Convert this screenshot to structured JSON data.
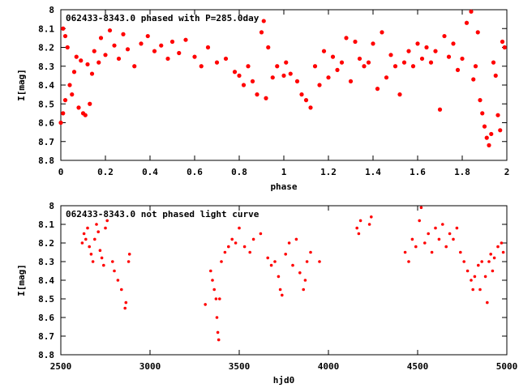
{
  "chart_data": [
    {
      "type": "scatter",
      "title": "062433-8343.0 phased with P=285.0day",
      "xlabel": "phase",
      "ylabel": "I[mag]",
      "xlim": [
        0,
        2
      ],
      "ylim": [
        8.8,
        8.0
      ],
      "y_inverted": true,
      "xticks": [
        "0",
        "0.2",
        "0.4",
        "0.6",
        "0.8",
        "1",
        "1.2",
        "1.4",
        "1.6",
        "1.8",
        "2"
      ],
      "xtick_values": [
        0,
        0.2,
        0.4,
        0.6,
        0.8,
        1.0,
        1.2,
        1.4,
        1.6,
        1.8,
        2.0
      ],
      "yticks": [
        "8",
        "8.1",
        "8.2",
        "8.3",
        "8.4",
        "8.5",
        "8.6",
        "8.7",
        "8.8"
      ],
      "ytick_values": [
        8.0,
        8.1,
        8.2,
        8.3,
        8.4,
        8.5,
        8.6,
        8.7,
        8.8
      ],
      "grid": false,
      "marker_color": "#ff0000",
      "series": [
        {
          "points": [
            [
              0.0,
              8.6
            ],
            [
              0.01,
              8.55
            ],
            [
              0.02,
              8.48
            ],
            [
              0.01,
              8.1
            ],
            [
              0.02,
              8.14
            ],
            [
              0.03,
              8.2
            ],
            [
              0.04,
              8.4
            ],
            [
              0.05,
              8.45
            ],
            [
              0.06,
              8.33
            ],
            [
              0.07,
              8.25
            ],
            [
              0.08,
              8.52
            ],
            [
              0.09,
              8.27
            ],
            [
              0.1,
              8.55
            ],
            [
              0.11,
              8.56
            ],
            [
              0.12,
              8.29
            ],
            [
              0.13,
              8.5
            ],
            [
              0.14,
              8.34
            ],
            [
              0.15,
              8.22
            ],
            [
              0.17,
              8.28
            ],
            [
              0.18,
              8.15
            ],
            [
              0.2,
              8.24
            ],
            [
              0.22,
              8.11
            ],
            [
              0.24,
              8.19
            ],
            [
              0.26,
              8.26
            ],
            [
              0.28,
              8.13
            ],
            [
              0.3,
              8.21
            ],
            [
              0.33,
              8.3
            ],
            [
              0.36,
              8.18
            ],
            [
              0.39,
              8.14
            ],
            [
              0.42,
              8.22
            ],
            [
              0.45,
              8.19
            ],
            [
              0.48,
              8.26
            ],
            [
              0.5,
              8.17
            ],
            [
              0.53,
              8.23
            ],
            [
              0.56,
              8.16
            ],
            [
              0.6,
              8.25
            ],
            [
              0.63,
              8.3
            ],
            [
              0.66,
              8.2
            ],
            [
              0.7,
              8.28
            ],
            [
              0.74,
              8.26
            ],
            [
              0.78,
              8.33
            ],
            [
              0.8,
              8.35
            ],
            [
              0.82,
              8.4
            ],
            [
              0.84,
              8.3
            ],
            [
              0.86,
              8.38
            ],
            [
              0.88,
              8.45
            ],
            [
              0.9,
              8.12
            ],
            [
              0.91,
              8.06
            ],
            [
              0.92,
              8.47
            ],
            [
              0.93,
              8.2
            ],
            [
              0.95,
              8.36
            ],
            [
              0.97,
              8.3
            ],
            [
              1.0,
              8.35
            ],
            [
              1.01,
              8.28
            ],
            [
              1.03,
              8.34
            ],
            [
              1.06,
              8.38
            ],
            [
              1.08,
              8.45
            ],
            [
              1.1,
              8.48
            ],
            [
              1.12,
              8.52
            ],
            [
              1.14,
              8.3
            ],
            [
              1.16,
              8.4
            ],
            [
              1.18,
              8.22
            ],
            [
              1.2,
              8.36
            ],
            [
              1.22,
              8.25
            ],
            [
              1.24,
              8.32
            ],
            [
              1.26,
              8.28
            ],
            [
              1.28,
              8.15
            ],
            [
              1.3,
              8.38
            ],
            [
              1.32,
              8.17
            ],
            [
              1.34,
              8.26
            ],
            [
              1.36,
              8.3
            ],
            [
              1.38,
              8.28
            ],
            [
              1.4,
              8.18
            ],
            [
              1.42,
              8.42
            ],
            [
              1.44,
              8.12
            ],
            [
              1.46,
              8.36
            ],
            [
              1.48,
              8.24
            ],
            [
              1.5,
              8.3
            ],
            [
              1.52,
              8.45
            ],
            [
              1.54,
              8.28
            ],
            [
              1.56,
              8.22
            ],
            [
              1.58,
              8.3
            ],
            [
              1.6,
              8.18
            ],
            [
              1.62,
              8.26
            ],
            [
              1.64,
              8.2
            ],
            [
              1.66,
              8.28
            ],
            [
              1.68,
              8.22
            ],
            [
              1.7,
              8.53
            ],
            [
              1.72,
              8.14
            ],
            [
              1.74,
              8.25
            ],
            [
              1.76,
              8.18
            ],
            [
              1.78,
              8.32
            ],
            [
              1.8,
              8.26
            ],
            [
              1.82,
              8.07
            ],
            [
              1.84,
              8.01
            ],
            [
              1.85,
              8.37
            ],
            [
              1.86,
              8.3
            ],
            [
              1.87,
              8.12
            ],
            [
              1.88,
              8.48
            ],
            [
              1.89,
              8.55
            ],
            [
              1.9,
              8.62
            ],
            [
              1.91,
              8.68
            ],
            [
              1.92,
              8.72
            ],
            [
              1.93,
              8.66
            ],
            [
              1.94,
              8.28
            ],
            [
              1.95,
              8.35
            ],
            [
              1.96,
              8.56
            ],
            [
              1.97,
              8.64
            ],
            [
              1.98,
              8.17
            ],
            [
              1.99,
              8.2
            ]
          ]
        }
      ]
    },
    {
      "type": "scatter",
      "title": "062433-8343.0 not phased light curve",
      "xlabel": "hjd0",
      "ylabel": "I[mag]",
      "xlim": [
        2500,
        5000
      ],
      "ylim": [
        8.8,
        8.0
      ],
      "y_inverted": true,
      "xticks": [
        "2500",
        "3000",
        "3500",
        "4000",
        "4500",
        "5000"
      ],
      "xtick_values": [
        2500,
        3000,
        3500,
        4000,
        4500,
        5000
      ],
      "yticks": [
        "8",
        "8.1",
        "8.2",
        "8.3",
        "8.4",
        "8.5",
        "8.6",
        "8.7",
        "8.8"
      ],
      "ytick_values": [
        8.0,
        8.1,
        8.2,
        8.3,
        8.4,
        8.5,
        8.6,
        8.7,
        8.8
      ],
      "grid": false,
      "marker_color": "#ff0000",
      "series": [
        {
          "points": [
            [
              2620,
              8.2
            ],
            [
              2630,
              8.15
            ],
            [
              2640,
              8.18
            ],
            [
              2650,
              8.12
            ],
            [
              2660,
              8.22
            ],
            [
              2670,
              8.26
            ],
            [
              2680,
              8.3
            ],
            [
              2690,
              8.18
            ],
            [
              2700,
              8.1
            ],
            [
              2710,
              8.14
            ],
            [
              2720,
              8.24
            ],
            [
              2730,
              8.28
            ],
            [
              2740,
              8.32
            ],
            [
              2750,
              8.12
            ],
            [
              2760,
              8.08
            ],
            [
              2790,
              8.3
            ],
            [
              2800,
              8.35
            ],
            [
              2820,
              8.4
            ],
            [
              2840,
              8.45
            ],
            [
              2860,
              8.55
            ],
            [
              2865,
              8.52
            ],
            [
              2880,
              8.3
            ],
            [
              2885,
              8.26
            ],
            [
              3310,
              8.53
            ],
            [
              3340,
              8.35
            ],
            [
              3350,
              8.4
            ],
            [
              3360,
              8.45
            ],
            [
              3370,
              8.5
            ],
            [
              3375,
              8.6
            ],
            [
              3380,
              8.68
            ],
            [
              3385,
              8.72
            ],
            [
              3390,
              8.5
            ],
            [
              3400,
              8.3
            ],
            [
              3420,
              8.25
            ],
            [
              3440,
              8.22
            ],
            [
              3460,
              8.18
            ],
            [
              3480,
              8.2
            ],
            [
              3500,
              8.12
            ],
            [
              3530,
              8.22
            ],
            [
              3560,
              8.25
            ],
            [
              3580,
              8.18
            ],
            [
              3620,
              8.15
            ],
            [
              3660,
              8.28
            ],
            [
              3680,
              8.32
            ],
            [
              3700,
              8.3
            ],
            [
              3720,
              8.38
            ],
            [
              3730,
              8.45
            ],
            [
              3740,
              8.48
            ],
            [
              3760,
              8.26
            ],
            [
              3780,
              8.2
            ],
            [
              3800,
              8.32
            ],
            [
              3820,
              8.18
            ],
            [
              3840,
              8.36
            ],
            [
              3860,
              8.45
            ],
            [
              3870,
              8.4
            ],
            [
              3880,
              8.3
            ],
            [
              3900,
              8.25
            ],
            [
              3950,
              8.3
            ],
            [
              4160,
              8.12
            ],
            [
              4170,
              8.15
            ],
            [
              4180,
              8.08
            ],
            [
              4230,
              8.1
            ],
            [
              4240,
              8.06
            ],
            [
              4430,
              8.25
            ],
            [
              4450,
              8.3
            ],
            [
              4470,
              8.18
            ],
            [
              4490,
              8.22
            ],
            [
              4510,
              8.08
            ],
            [
              4520,
              8.01
            ],
            [
              4540,
              8.2
            ],
            [
              4560,
              8.15
            ],
            [
              4580,
              8.25
            ],
            [
              4600,
              8.12
            ],
            [
              4620,
              8.18
            ],
            [
              4640,
              8.1
            ],
            [
              4660,
              8.22
            ],
            [
              4680,
              8.15
            ],
            [
              4700,
              8.18
            ],
            [
              4720,
              8.12
            ],
            [
              4740,
              8.25
            ],
            [
              4760,
              8.3
            ],
            [
              4780,
              8.35
            ],
            [
              4800,
              8.4
            ],
            [
              4810,
              8.45
            ],
            [
              4820,
              8.38
            ],
            [
              4840,
              8.32
            ],
            [
              4850,
              8.45
            ],
            [
              4860,
              8.3
            ],
            [
              4880,
              8.38
            ],
            [
              4890,
              8.52
            ],
            [
              4900,
              8.3
            ],
            [
              4910,
              8.26
            ],
            [
              4920,
              8.35
            ],
            [
              4930,
              8.28
            ],
            [
              4950,
              8.22
            ],
            [
              4970,
              8.2
            ],
            [
              4980,
              8.25
            ]
          ]
        }
      ]
    }
  ]
}
